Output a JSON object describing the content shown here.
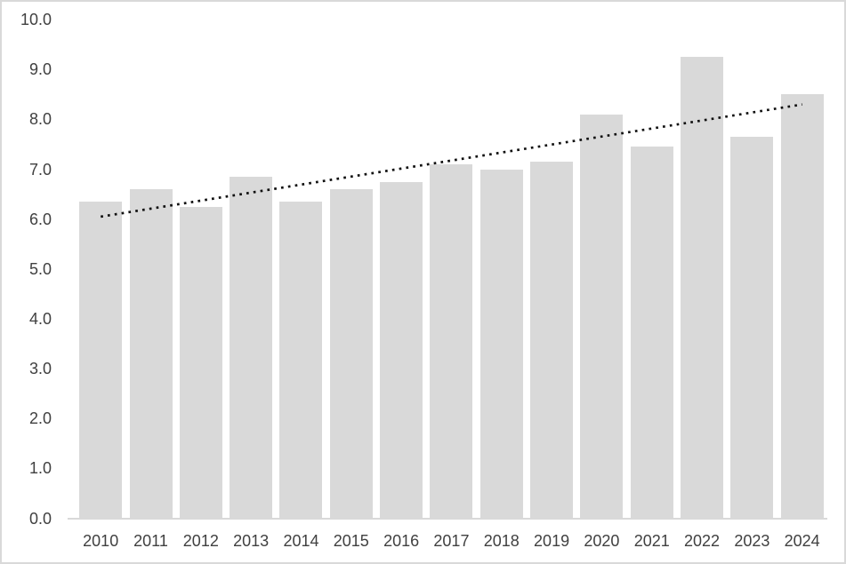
{
  "chart_data": {
    "type": "bar",
    "title": "",
    "xlabel": "",
    "ylabel": "",
    "categories": [
      "2010",
      "2011",
      "2012",
      "2013",
      "2014",
      "2015",
      "2016",
      "2017",
      "2018",
      "2019",
      "2020",
      "2021",
      "2022",
      "2023",
      "2024"
    ],
    "series": [
      {
        "name": "value",
        "values": [
          6.35,
          6.6,
          6.25,
          6.85,
          6.35,
          6.6,
          6.75,
          7.1,
          7.0,
          7.15,
          8.1,
          7.45,
          9.25,
          7.65,
          8.5
        ]
      }
    ],
    "ylim": [
      0,
      10
    ],
    "ytick_step": 1.0,
    "ytick_labels": [
      "0.0",
      "1.0",
      "2.0",
      "3.0",
      "4.0",
      "5.0",
      "6.0",
      "7.0",
      "8.0",
      "9.0",
      "10.0"
    ],
    "grid": false,
    "legend": "none",
    "trendline": {
      "type": "linear",
      "style": "dotted",
      "start_category": "2010",
      "start_value": 6.05,
      "end_category": "2024",
      "end_value": 8.3
    },
    "colors": {
      "bar_fill": "#d9d9d9",
      "trend_line": "#111111",
      "axis_line": "#d9d9d9",
      "tick_text": "#404040",
      "background": "#ffffff",
      "border": "#d9d9d9"
    }
  }
}
